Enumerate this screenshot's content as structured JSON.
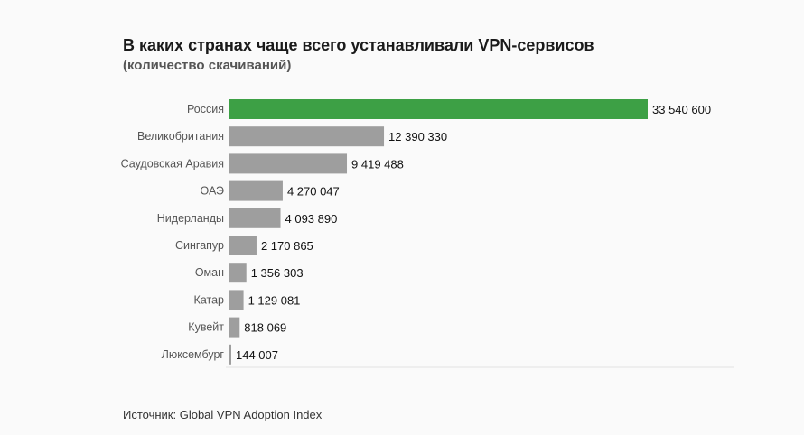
{
  "chart_data": {
    "type": "bar",
    "orientation": "horizontal",
    "title": "В каких странах чаще всего устанавливали VPN-сервисов",
    "subtitle": "(количество скачиваний)",
    "categories": [
      "Россия",
      "Великобритания",
      "Саудовская Аравия",
      "ОАЭ",
      "Нидерланды",
      "Сингапур",
      "Оман",
      "Катар",
      "Кувейт",
      "Люксембург"
    ],
    "values": [
      33540600,
      12390330,
      9419488,
      4270047,
      4093890,
      2170865,
      1356303,
      1129081,
      818069,
      144007
    ],
    "value_labels": [
      "33 540 600",
      "12 390 330",
      "9 419 488",
      "4 270 047",
      "4 093 890",
      "2 170 865",
      "1 356 303",
      "1 129 081",
      "818 069",
      "144 007"
    ],
    "highlight_index": 0,
    "colors": {
      "highlight": "#3da045",
      "default": "#9e9e9e",
      "baseline": "#e3e3e3"
    },
    "xlim": [
      0,
      33540600
    ],
    "grid": false
  },
  "source": "Источник: Global VPN Adoption Index"
}
